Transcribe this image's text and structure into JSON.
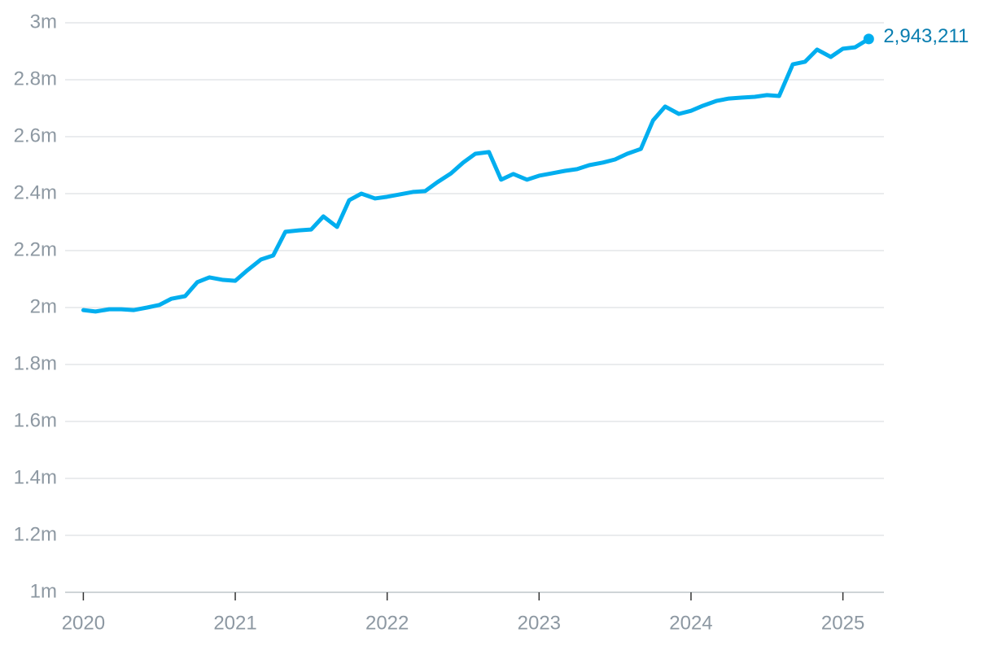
{
  "chart_data": {
    "type": "line",
    "color": "#00aeef",
    "label_color": "#0a7eb0",
    "grid": true,
    "x": [
      2020,
      2020.08,
      2020.17,
      2020.25,
      2020.33,
      2020.42,
      2020.5,
      2020.58,
      2020.67,
      2020.75,
      2020.83,
      2020.92,
      2021,
      2021.08,
      2021.17,
      2021.25,
      2021.33,
      2021.42,
      2021.5,
      2021.58,
      2021.67,
      2021.75,
      2021.83,
      2021.92,
      2022,
      2022.08,
      2022.17,
      2022.25,
      2022.33,
      2022.42,
      2022.5,
      2022.58,
      2022.67,
      2022.75,
      2022.83,
      2022.92,
      2023,
      2023.08,
      2023.17,
      2023.25,
      2023.33,
      2023.42,
      2023.5,
      2023.58,
      2023.67,
      2023.75,
      2023.83,
      2023.92,
      2024,
      2024.08,
      2024.17,
      2024.25,
      2024.33,
      2024.42,
      2024.5,
      2024.58,
      2024.67,
      2024.75,
      2024.83,
      2024.92,
      2025,
      2025.08,
      2025.17
    ],
    "values": [
      1991000,
      1986000,
      1994000,
      1994000,
      1991000,
      2000000,
      2009000,
      2031000,
      2040000,
      2089000,
      2106000,
      2097000,
      2094000,
      2131000,
      2169000,
      2183000,
      2266000,
      2271000,
      2274000,
      2320000,
      2283000,
      2377000,
      2400000,
      2383000,
      2389000,
      2397000,
      2406000,
      2409000,
      2440000,
      2471000,
      2509000,
      2540000,
      2546000,
      2449000,
      2469000,
      2449000,
      2463000,
      2471000,
      2480000,
      2486000,
      2500000,
      2509000,
      2520000,
      2540000,
      2557000,
      2657000,
      2706000,
      2680000,
      2691000,
      2709000,
      2726000,
      2734000,
      2737000,
      2740000,
      2746000,
      2743000,
      2854000,
      2863000,
      2906000,
      2880000,
      2909000,
      2914000,
      2943211
    ],
    "value_labels": [
      null,
      null,
      null,
      null,
      null,
      null,
      null,
      null,
      null,
      null,
      null,
      null,
      null,
      null,
      null,
      null,
      null,
      null,
      null,
      null,
      null,
      null,
      null,
      null,
      null,
      null,
      null,
      null,
      null,
      null,
      null,
      null,
      null,
      null,
      null,
      null,
      null,
      null,
      null,
      null,
      null,
      null,
      null,
      null,
      null,
      null,
      null,
      null,
      null,
      null,
      null,
      null,
      null,
      null,
      null,
      null,
      null,
      null,
      null,
      null,
      null,
      null,
      "2,943,211"
    ],
    "xlim": [
      2019.88,
      2025.27
    ],
    "xticks": [
      2020,
      2021,
      2022,
      2023,
      2024,
      2025
    ],
    "ylim": [
      1000000,
      3000000
    ],
    "yticks": [
      {
        "value": 1000000,
        "label": "1m"
      },
      {
        "value": 1200000,
        "label": "1.2m"
      },
      {
        "value": 1400000,
        "label": "1.4m"
      },
      {
        "value": 1600000,
        "label": "1.6m"
      },
      {
        "value": 1800000,
        "label": "1.8m"
      },
      {
        "value": 2000000,
        "label": "2m"
      },
      {
        "value": 2200000,
        "label": "2.2m"
      },
      {
        "value": 2400000,
        "label": "2.4m"
      },
      {
        "value": 2600000,
        "label": "2.6m"
      },
      {
        "value": 2800000,
        "label": "2.8m"
      },
      {
        "value": 3000000,
        "label": "3m"
      }
    ]
  }
}
